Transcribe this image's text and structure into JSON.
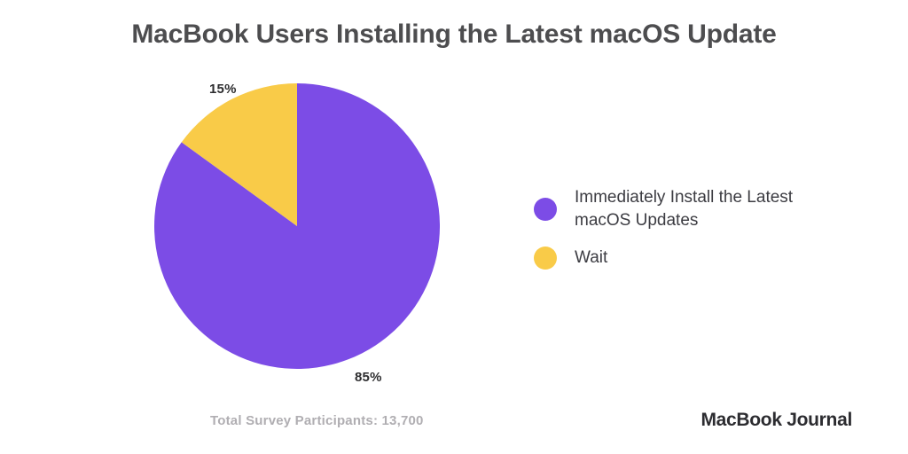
{
  "title": "MacBook Users Installing the Latest macOS Update",
  "colors": {
    "install": "#7c4ce6",
    "wait": "#f9cb48",
    "title_text": "#4d4d4f",
    "legend_text": "#3c3c42",
    "footer_text": "#b0aeb2",
    "brand_text": "#2c2c30"
  },
  "chart_data": {
    "type": "pie",
    "title": "MacBook Users Installing the Latest macOS Update",
    "start_angle_deg": 0,
    "direction": "clockwise",
    "legend_position": "right",
    "slices": [
      {
        "label": "Immediately Install the Latest macOS Updates",
        "value": 85,
        "percent_label": "85%",
        "color": "#7c4ce6"
      },
      {
        "label": "Wait",
        "value": 15,
        "percent_label": "15%",
        "color": "#f9cb48"
      }
    ],
    "total_participants": 13700
  },
  "footer": {
    "total_label": "Total Survey Participants: 13,700",
    "brand": "MacBook Journal"
  }
}
